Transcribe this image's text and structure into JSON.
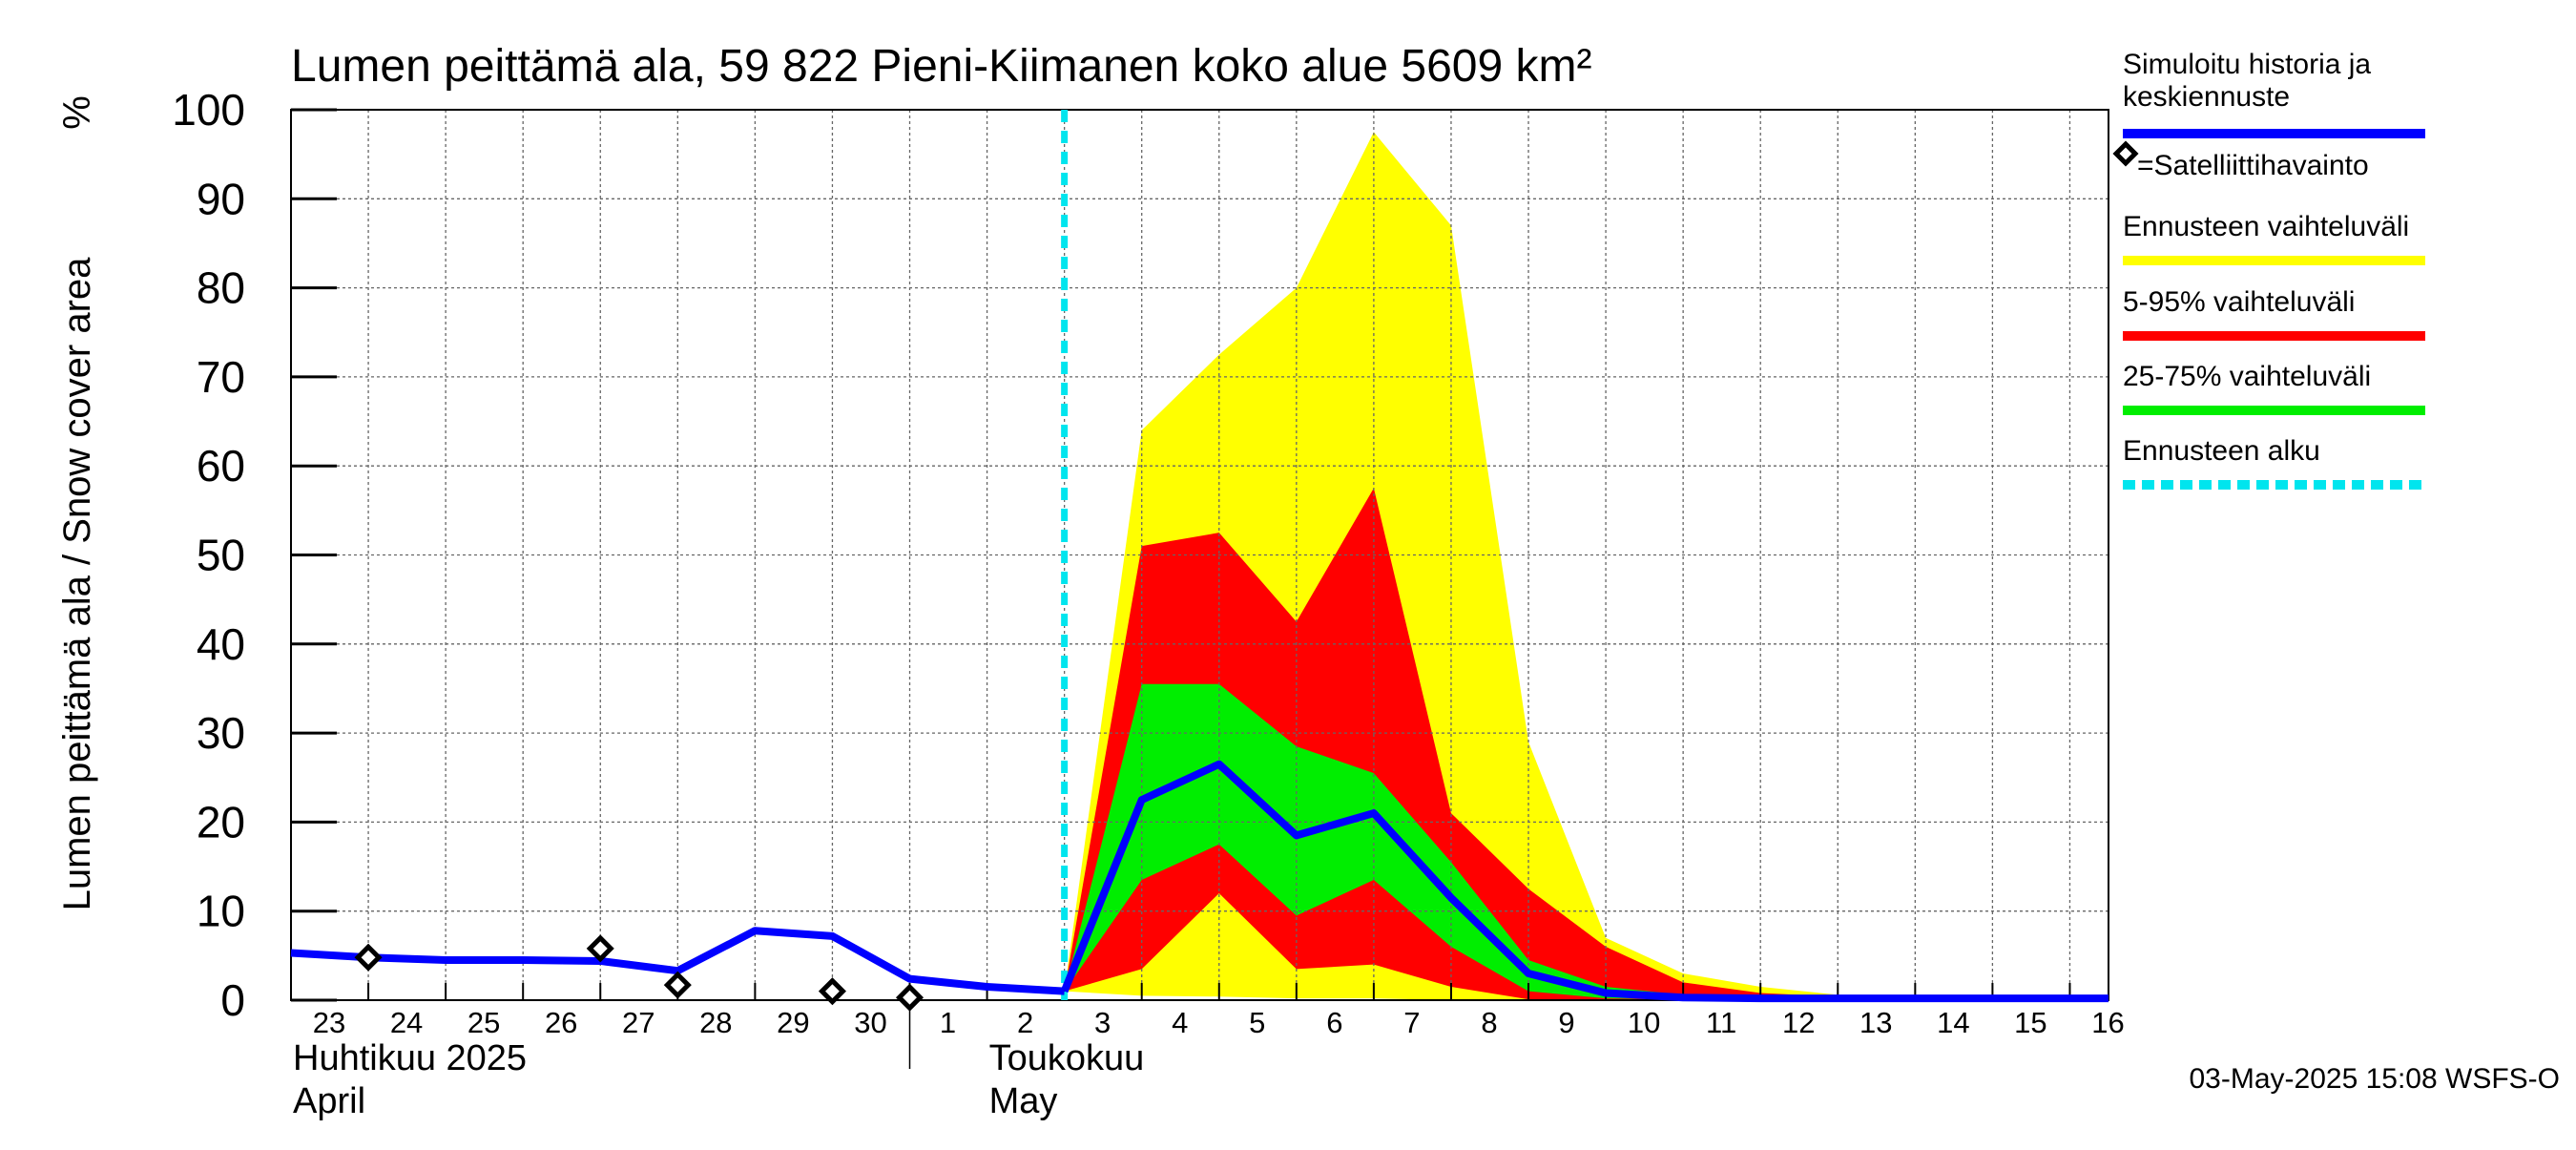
{
  "chart_data": {
    "type": "area",
    "title": "Lumen peittämä ala, 59 822 Pieni-Kiimanen koko alue 5609 km²",
    "ylabel": "Lumen peittämä ala / Snow cover area",
    "yunit": "%",
    "ylim": [
      0,
      100
    ],
    "yticks": [
      0,
      10,
      20,
      30,
      40,
      50,
      60,
      70,
      80,
      90,
      100
    ],
    "xlim": [
      "2025-04-23",
      "2025-05-16T12"
    ],
    "grid": true,
    "x_ticks": [
      {
        "date": "2025-04-23",
        "label": "23"
      },
      {
        "date": "2025-04-24",
        "label": "24"
      },
      {
        "date": "2025-04-25",
        "label": "25"
      },
      {
        "date": "2025-04-26",
        "label": "26"
      },
      {
        "date": "2025-04-27",
        "label": "27"
      },
      {
        "date": "2025-04-28",
        "label": "28"
      },
      {
        "date": "2025-04-29",
        "label": "29"
      },
      {
        "date": "2025-04-30",
        "label": "30"
      },
      {
        "date": "2025-05-01",
        "label": "1"
      },
      {
        "date": "2025-05-02",
        "label": "2"
      },
      {
        "date": "2025-05-03",
        "label": "3"
      },
      {
        "date": "2025-05-04",
        "label": "4"
      },
      {
        "date": "2025-05-05",
        "label": "5"
      },
      {
        "date": "2025-05-06",
        "label": "6"
      },
      {
        "date": "2025-05-07",
        "label": "7"
      },
      {
        "date": "2025-05-08",
        "label": "8"
      },
      {
        "date": "2025-05-09",
        "label": "9"
      },
      {
        "date": "2025-05-10",
        "label": "10"
      },
      {
        "date": "2025-05-11",
        "label": "11"
      },
      {
        "date": "2025-05-12",
        "label": "12"
      },
      {
        "date": "2025-05-13",
        "label": "13"
      },
      {
        "date": "2025-05-14",
        "label": "14"
      },
      {
        "date": "2025-05-15",
        "label": "15"
      },
      {
        "date": "2025-05-16",
        "label": "16"
      }
    ],
    "month_labels": [
      {
        "date": "2025-04-23",
        "line1": "Huhtikuu  2025",
        "line2": "April"
      },
      {
        "date": "2025-05-02",
        "line1": "Toukokuu",
        "line2": "May"
      }
    ],
    "month_separator": "2025-05-01",
    "forecast_start": "2025-05-03",
    "history": {
      "name": "Simuloitu historia ja keskiennuste",
      "color": "#0000ff",
      "x": [
        "2025-04-23",
        "2025-04-24",
        "2025-04-25",
        "2025-04-26",
        "2025-04-27",
        "2025-04-28",
        "2025-04-29",
        "2025-04-30",
        "2025-05-01",
        "2025-05-02",
        "2025-05-03"
      ],
      "y": [
        5.3,
        4.8,
        4.5,
        4.5,
        4.4,
        3.3,
        7.8,
        7.2,
        2.4,
        1.5,
        1.0
      ]
    },
    "forecast_dates": [
      "2025-05-03",
      "2025-05-04",
      "2025-05-05",
      "2025-05-06",
      "2025-05-07",
      "2025-05-08",
      "2025-05-09",
      "2025-05-10",
      "2025-05-11",
      "2025-05-12",
      "2025-05-13",
      "2025-05-14",
      "2025-05-15",
      "2025-05-16",
      "2025-05-16T12"
    ],
    "bands": [
      {
        "name": "Ennusteen vaihteluväli",
        "color": "#ffff00",
        "low": [
          1.0,
          0.5,
          0.4,
          0.2,
          0.2,
          0.0,
          0.0,
          0.0,
          0.0,
          0.0,
          0.0,
          0.0,
          0.0,
          0.0,
          0.0
        ],
        "high": [
          1.0,
          64,
          72.5,
          80,
          97.5,
          87,
          29,
          7,
          3,
          1.5,
          0.6,
          0.4,
          0.3,
          0.3,
          0.3
        ]
      },
      {
        "name": "5-95% vaihteluväli",
        "color": "#ff0000",
        "low": [
          1.0,
          3.5,
          12,
          3.5,
          4,
          1.5,
          0.1,
          0.0,
          0.0,
          0.0,
          0.0,
          0.0,
          0.0,
          0.0,
          0.0
        ],
        "high": [
          1.0,
          51,
          52.5,
          42.5,
          57.5,
          21,
          12.5,
          6,
          2,
          0.8,
          0.4,
          0.3,
          0.3,
          0.3,
          0.3
        ]
      },
      {
        "name": "25-75% vaihteluväli",
        "color": "#00ee00",
        "low": [
          1.0,
          13.5,
          17.5,
          9.5,
          13.5,
          6,
          1,
          0.2,
          0.1,
          0.0,
          0.0,
          0.0,
          0.0,
          0.0,
          0.0
        ],
        "high": [
          1.0,
          35.5,
          35.5,
          28.5,
          25.5,
          15.5,
          4.5,
          1.5,
          0.6,
          0.3,
          0.3,
          0.3,
          0.3,
          0.3,
          0.3
        ]
      }
    ],
    "median": {
      "name": "Simuloitu historia ja keskiennuste",
      "color": "#0000ff",
      "y": [
        1.0,
        22.5,
        26.5,
        18.5,
        21,
        11.5,
        3,
        0.8,
        0.3,
        0.2,
        0.2,
        0.2,
        0.2,
        0.2,
        0.2
      ]
    },
    "observations": {
      "name": "=Satelliittihavainto",
      "x": [
        "2025-04-24",
        "2025-04-27",
        "2025-04-28",
        "2025-04-30",
        "2025-05-01"
      ],
      "y": [
        4.8,
        5.8,
        1.7,
        1.0,
        0.3
      ]
    },
    "legend": {
      "placement": "right",
      "entries": [
        {
          "key": "history",
          "line1": "Simuloitu historia ja",
          "line2": "keskiennuste",
          "color": "#0000ff",
          "style": "line"
        },
        {
          "key": "satellite",
          "line1": "=Satelliittihavainto",
          "line2": "",
          "color": "#000000",
          "style": "diamond"
        },
        {
          "key": "range",
          "line1": "Ennusteen vaihteluväli",
          "line2": "",
          "color": "#ffff00",
          "style": "line"
        },
        {
          "key": "p5_95",
          "line1": "5-95% vaihteluväli",
          "line2": "",
          "color": "#ff0000",
          "style": "line"
        },
        {
          "key": "p25_75",
          "line1": "25-75% vaihteluväli",
          "line2": "",
          "color": "#00ee00",
          "style": "line"
        },
        {
          "key": "forecast-start",
          "line1": "Ennusteen alku",
          "line2": "",
          "color": "#00e5ee",
          "style": "dashed"
        }
      ]
    },
    "footer": "03-May-2025 15:08 WSFS-O"
  }
}
